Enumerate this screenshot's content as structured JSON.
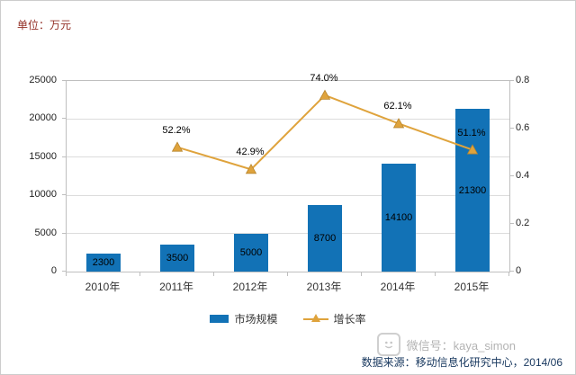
{
  "unit_label": "单位：万元",
  "chart_data": {
    "type": "combo",
    "title": "",
    "categories": [
      "2010年",
      "2011年",
      "2012年",
      "2013年",
      "2014年",
      "2015年"
    ],
    "series": [
      {
        "name": "市场规模",
        "type": "bar",
        "axis": "left",
        "values": [
          2300,
          3500,
          5000,
          8700,
          14100,
          21300
        ],
        "color": "#1272b6"
      },
      {
        "name": "增长率",
        "type": "line",
        "axis": "right",
        "values": [
          null,
          0.522,
          0.429,
          0.74,
          0.621,
          0.511
        ],
        "labels": [
          "",
          "52.2%",
          "42.9%",
          "74.0%",
          "62.1%",
          "51.1%"
        ],
        "color": "#dfa33c",
        "marker": "triangle"
      }
    ],
    "left_axis": {
      "min": 0,
      "max": 25000,
      "step": 5000
    },
    "right_axis": {
      "min": 0,
      "max": 0.8,
      "step": 0.2
    },
    "grid": true,
    "legend_position": "bottom"
  },
  "footer": {
    "source": "数据来源：移动信息化研究中心，2014/06",
    "watermark": "微信号：kaya_simon"
  }
}
